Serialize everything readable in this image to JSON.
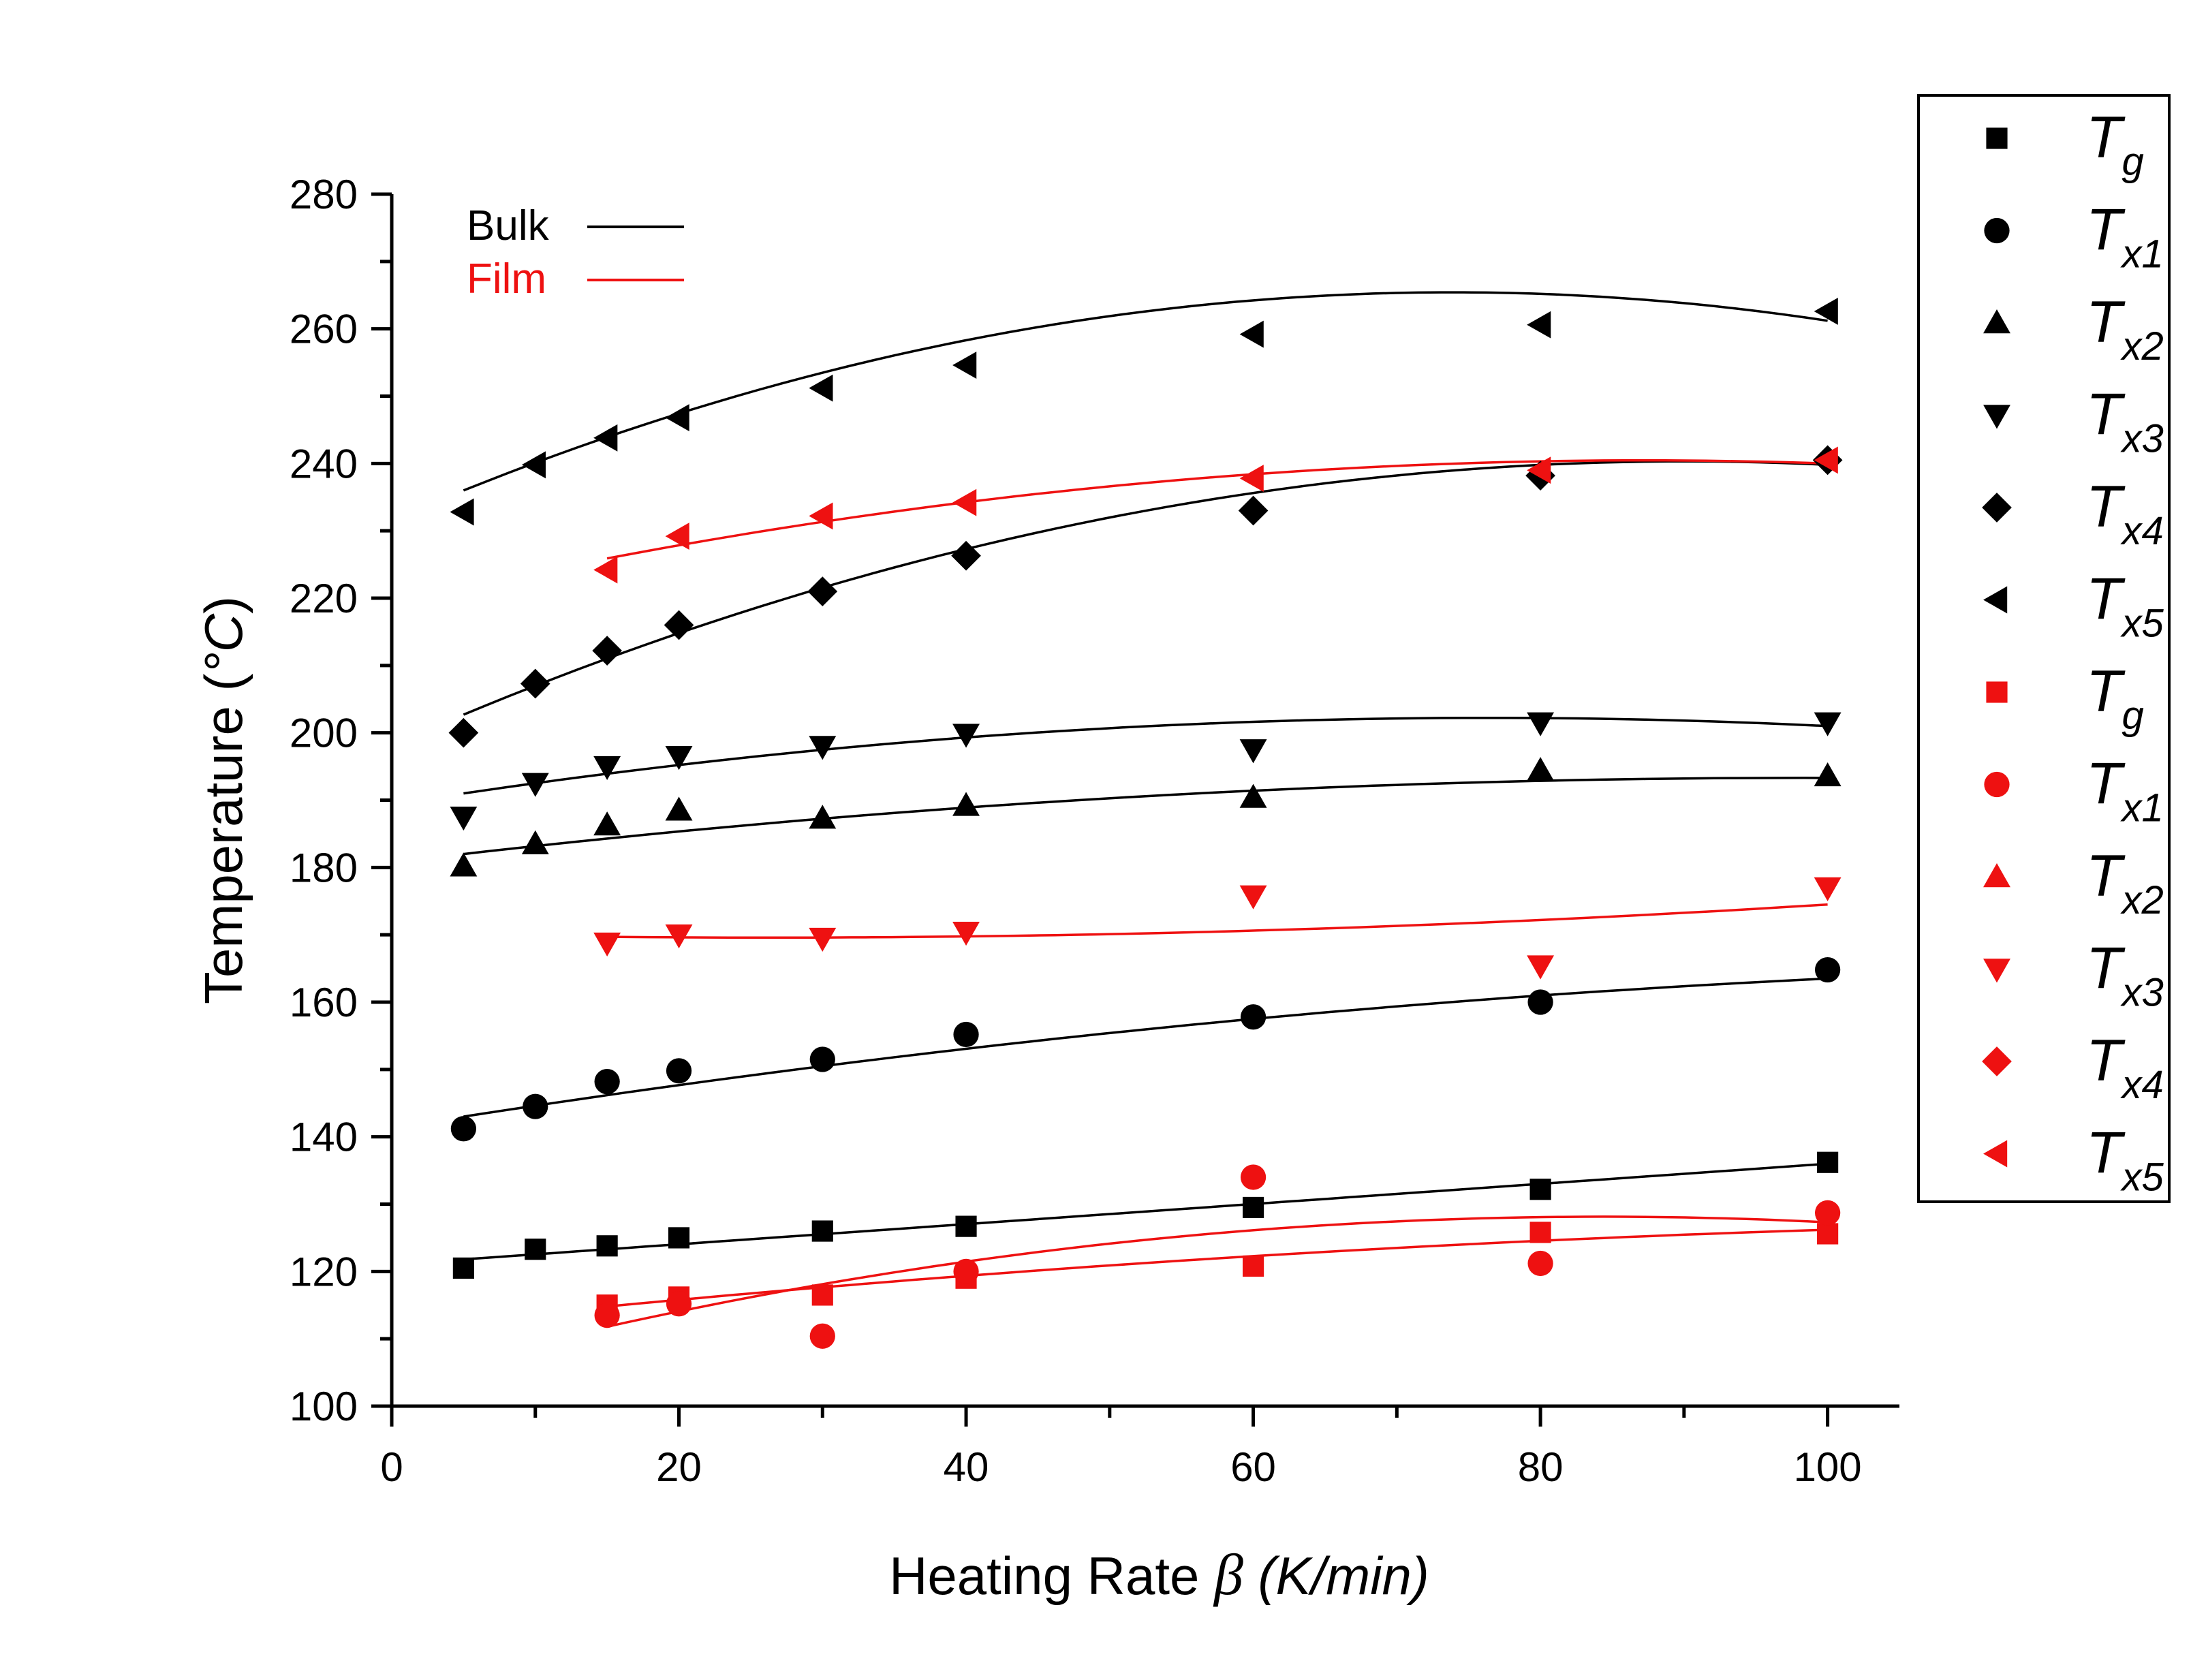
{
  "chart_data": {
    "type": "scatter",
    "xlabel": "Heating Rate β (K/min)",
    "xlabel_parts": {
      "main": "Heating Rate ",
      "symbol": "β",
      "unit": " (K/min)"
    },
    "ylabel": "Temperature (°C)",
    "ylabel_parts": {
      "main": "Temperature (",
      "unit": "°C",
      "close": ")"
    },
    "xlim": [
      0,
      105
    ],
    "ylim": [
      100,
      280
    ],
    "xticks": [
      0,
      20,
      40,
      60,
      80,
      100
    ],
    "yticks": [
      100,
      120,
      140,
      160,
      180,
      200,
      220,
      240,
      260,
      280
    ],
    "xtick_labels": [
      "0",
      "20",
      "40",
      "60",
      "80",
      "100"
    ],
    "ytick_labels": [
      "100",
      "120",
      "140",
      "160",
      "180",
      "200",
      "220",
      "240",
      "260",
      "280"
    ],
    "grid": false,
    "legend_position": "outside-right",
    "colors": {
      "bulk": "#000000",
      "film": "#ee1111"
    },
    "fit_legend": [
      {
        "label": "Bulk",
        "color": "#000000"
      },
      {
        "label": "Film",
        "color": "#ee1111"
      }
    ],
    "series": [
      {
        "name": "Tg",
        "symbol_main": "T",
        "symbol_sub": "g",
        "group": "bulk",
        "marker": "square",
        "x": [
          5,
          10,
          15,
          20,
          30,
          40,
          60,
          80,
          100
        ],
        "y": [
          120.5,
          123.3,
          123.8,
          125.0,
          126.0,
          126.7,
          129.5,
          132.2,
          136.2
        ]
      },
      {
        "name": "Tx1",
        "symbol_main": "T",
        "symbol_sub": "x1",
        "group": "bulk",
        "marker": "circle",
        "x": [
          5,
          10,
          15,
          20,
          30,
          40,
          60,
          80,
          100
        ],
        "y": [
          141.2,
          144.5,
          148.2,
          149.8,
          151.5,
          155.2,
          157.8,
          160.0,
          164.8
        ]
      },
      {
        "name": "Tx2",
        "symbol_main": "T",
        "symbol_sub": "x2",
        "group": "bulk",
        "marker": "triangle-up",
        "x": [
          5,
          10,
          15,
          20,
          30,
          40,
          60,
          80,
          100
        ],
        "y": [
          180.2,
          183.5,
          186.3,
          188.5,
          187.3,
          189.2,
          190.4,
          194.4,
          193.6
        ]
      },
      {
        "name": "Tx3",
        "symbol_main": "T",
        "symbol_sub": "x3",
        "group": "bulk",
        "marker": "triangle-down",
        "x": [
          5,
          10,
          15,
          20,
          30,
          40,
          60,
          80,
          100
        ],
        "y": [
          187.5,
          192.5,
          195.0,
          196.5,
          198.0,
          199.8,
          197.5,
          201.5,
          201.5
        ]
      },
      {
        "name": "Tx4",
        "symbol_main": "T",
        "symbol_sub": "x4",
        "group": "bulk",
        "marker": "diamond",
        "x": [
          5,
          10,
          15,
          20,
          30,
          40,
          60,
          80,
          100
        ],
        "y": [
          200.0,
          207.3,
          212.2,
          216.0,
          221.0,
          226.3,
          233.0,
          238.2,
          240.5
        ]
      },
      {
        "name": "Tx5",
        "symbol_main": "T",
        "symbol_sub": "x5",
        "group": "bulk",
        "marker": "triangle-left",
        "x": [
          5,
          10,
          15,
          20,
          30,
          40,
          60,
          80,
          100
        ],
        "y": [
          232.8,
          239.8,
          243.8,
          246.8,
          251.2,
          254.6,
          259.2,
          260.6,
          262.6
        ]
      },
      {
        "name": "Tg",
        "symbol_main": "T",
        "symbol_sub": "g",
        "group": "film",
        "marker": "square",
        "x": [
          15,
          20,
          30,
          40,
          60,
          80,
          100
        ],
        "y": [
          115.0,
          116.2,
          116.5,
          119.0,
          120.8,
          125.8,
          125.6
        ]
      },
      {
        "name": "Tx1",
        "symbol_main": "T",
        "symbol_sub": "x1",
        "group": "film",
        "marker": "circle",
        "x": [
          15,
          20,
          30,
          40,
          60,
          80,
          100
        ],
        "y": [
          113.5,
          115.2,
          110.4,
          120.0,
          134.0,
          121.2,
          128.7
        ]
      },
      {
        "name": "Tx2",
        "symbol_main": "T",
        "symbol_sub": "x2",
        "group": "film",
        "marker": "triangle-up",
        "x": [],
        "y": []
      },
      {
        "name": "Tx3",
        "symbol_main": "T",
        "symbol_sub": "x3",
        "group": "film",
        "marker": "triangle-down",
        "x": [
          15,
          20,
          30,
          40,
          60,
          80,
          100
        ],
        "y": [
          168.8,
          170.0,
          169.5,
          170.4,
          175.8,
          165.4,
          177.0
        ]
      },
      {
        "name": "Tx4",
        "symbol_main": "T",
        "symbol_sub": "x4",
        "group": "film",
        "marker": "diamond",
        "x": [],
        "y": []
      },
      {
        "name": "Tx5",
        "symbol_main": "T",
        "symbol_sub": "x5",
        "group": "film",
        "marker": "triangle-left",
        "x": [
          15,
          20,
          30,
          40,
          60,
          80,
          100
        ],
        "y": [
          224.2,
          229.2,
          232.2,
          234.2,
          237.8,
          239.0,
          240.5
        ]
      }
    ],
    "fit_curves": [
      {
        "group": "bulk",
        "fits": "Tg",
        "x": [
          5,
          100
        ],
        "y": [
          121.8,
          136.0
        ],
        "shape": "linear"
      },
      {
        "group": "bulk",
        "fits": "Tx1",
        "x": [
          5,
          100
        ],
        "y": [
          143.0,
          163.5
        ],
        "curvature": -0.0012
      },
      {
        "group": "bulk",
        "fits": "Tx2",
        "x": [
          5,
          100
        ],
        "y": [
          182.0,
          193.3
        ],
        "curvature": -0.0013
      },
      {
        "group": "bulk",
        "fits": "Tx3",
        "x": [
          5,
          100
        ],
        "y": [
          191.0,
          201.0
        ],
        "curvature": -0.0022
      },
      {
        "group": "bulk",
        "fits": "Tx4",
        "x": [
          5,
          100
        ],
        "y": [
          202.7,
          239.8
        ],
        "curvature": -0.0052
      },
      {
        "group": "bulk",
        "fits": "Tx5",
        "x": [
          5,
          100
        ],
        "y": [
          236.0,
          261.2
        ],
        "curvature": -0.0062
      },
      {
        "group": "film",
        "fits": "Tg",
        "x": [
          15,
          100
        ],
        "y": [
          114.8,
          126.2
        ],
        "curvature": -0.0008
      },
      {
        "group": "film",
        "fits": "Tx1",
        "x": [
          15,
          100
        ],
        "y": [
          111.8,
          127.3
        ],
        "curvature": -0.0034
      },
      {
        "group": "film",
        "fits": "Tx3",
        "x": [
          15,
          100
        ],
        "y": [
          169.7,
          174.5
        ],
        "curvature": 0.0009
      },
      {
        "group": "film",
        "fits": "Tx5",
        "x": [
          15,
          100
        ],
        "y": [
          225.9,
          240.0
        ],
        "curvature": -0.0028
      }
    ]
  }
}
